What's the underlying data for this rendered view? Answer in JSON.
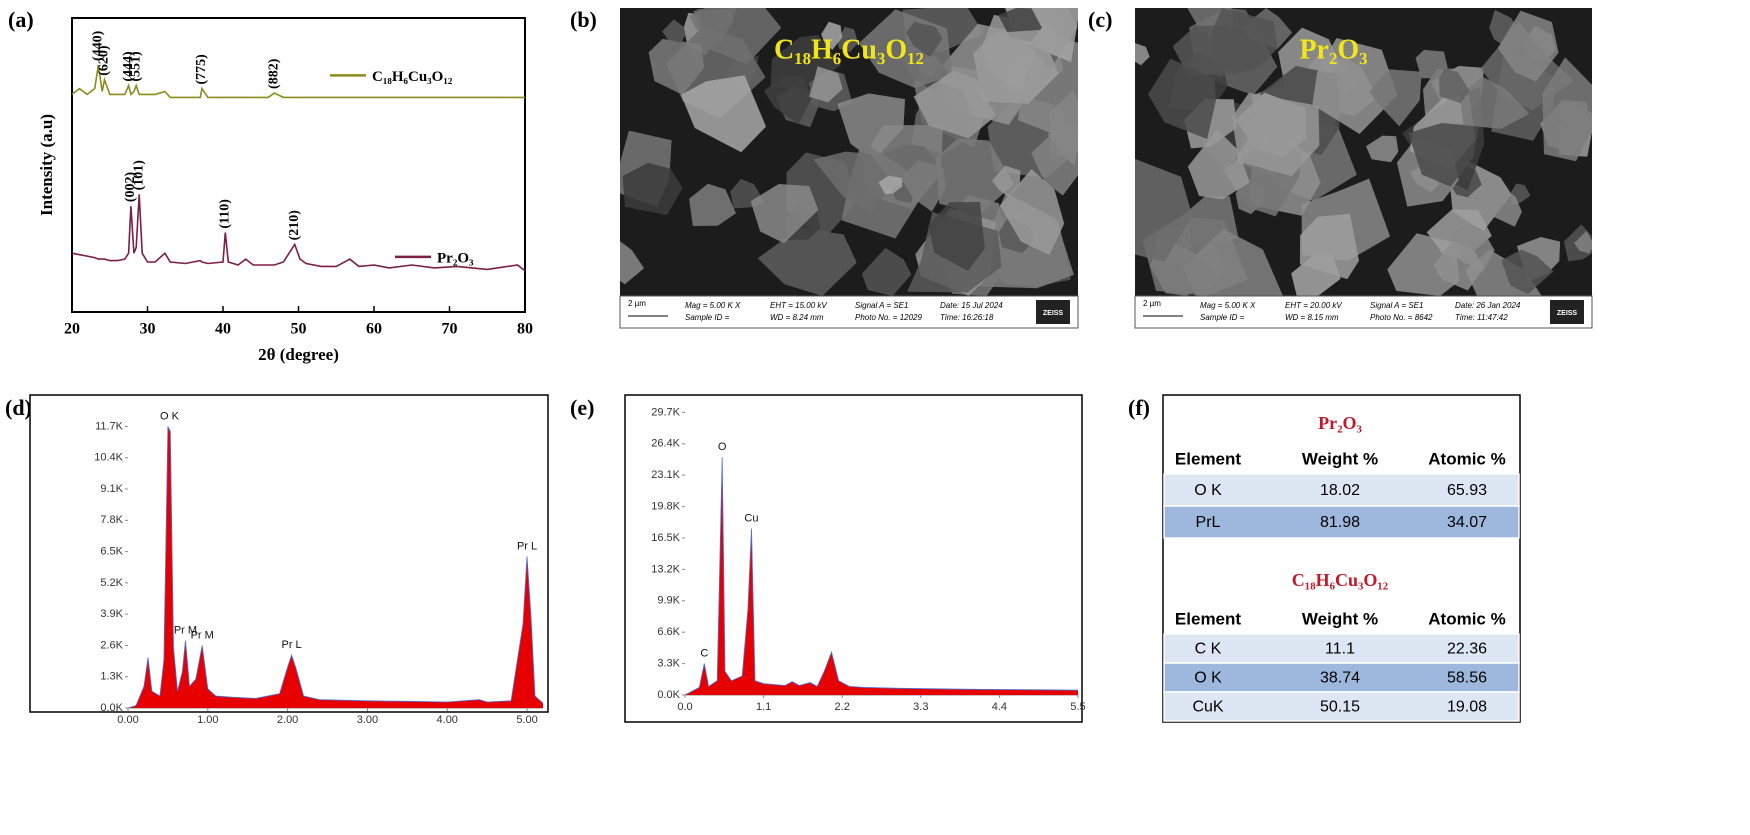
{
  "chart_data": [
    {
      "type": "line",
      "label": "(a)",
      "xlabel": "2θ (degree)",
      "ylabel": "Intensity (a.u)",
      "xlim": [
        20,
        80
      ],
      "ylim": [
        0,
        100
      ],
      "xticks": [
        20,
        30,
        40,
        50,
        60,
        70,
        80
      ],
      "x": [
        20,
        21,
        22,
        23,
        23.5,
        24,
        24.3,
        25,
        26,
        27,
        27.5,
        27.8,
        28.2,
        28.5,
        28.9,
        29.3,
        30,
        31,
        32.3,
        33,
        35,
        37,
        37.2,
        38,
        40,
        40.3,
        40.7,
        42,
        43,
        44,
        46,
        46.8,
        48,
        49.5,
        50.2,
        51,
        53,
        55,
        56.8,
        58,
        60,
        62,
        65,
        68,
        71,
        75,
        79,
        80
      ],
      "series": [
        {
          "name": "C₁₈H₆Cu₃O₁₂",
          "color": "#8b8b1e",
          "values": [
            74,
            76,
            74,
            76,
            84,
            75,
            79,
            74,
            74,
            74,
            77,
            74,
            75,
            77,
            74,
            74,
            74,
            74,
            75,
            73,
            73,
            73,
            76,
            73,
            73,
            73,
            73,
            73,
            73,
            73,
            73,
            74.5,
            73,
            73,
            73,
            73,
            73,
            73,
            73,
            73,
            73,
            73,
            73,
            73,
            73,
            73,
            73,
            73
          ],
          "annotations": [
            {
              "text": "(440)",
              "x": 23.5
            },
            {
              "text": "(620)",
              "x": 24.3
            },
            {
              "text": "(444)",
              "x": 27.5
            },
            {
              "text": "(551)",
              "x": 28.5
            },
            {
              "text": "(775)",
              "x": 37.2
            },
            {
              "text": "(882)",
              "x": 46.8
            }
          ]
        },
        {
          "name": "Pr₂O₃",
          "color": "#7b1f45",
          "values": [
            20,
            19.5,
            19,
            18.5,
            18,
            18,
            18,
            17.5,
            17.5,
            18,
            20,
            36,
            20,
            22,
            40,
            20,
            17,
            17,
            20,
            17,
            16.5,
            17.5,
            17,
            16.5,
            17,
            27,
            17,
            16,
            18,
            16,
            16,
            16,
            17,
            23,
            18,
            16.5,
            15.5,
            15.5,
            18,
            15.5,
            16,
            15,
            16,
            15,
            15.5,
            14.5,
            16,
            14
          ],
          "annotations": [
            {
              "text": "(002)",
              "x": 27.8
            },
            {
              "text": "(101)",
              "x": 28.9
            },
            {
              "text": "(110)",
              "x": 40.3
            },
            {
              "text": "(210)",
              "x": 49.5
            }
          ]
        }
      ]
    },
    {
      "type": "area",
      "label": "(d)",
      "color": "#e60000",
      "line_color": "#4a6fd6",
      "xlim": [
        0,
        5.2
      ],
      "ylim": [
        0,
        12800
      ],
      "xticks": [
        {
          "value": 0,
          "label": "0.00"
        },
        {
          "value": 1,
          "label": "1.00"
        },
        {
          "value": 2,
          "label": "2.00"
        },
        {
          "value": 3,
          "label": "3.00"
        },
        {
          "value": 4,
          "label": "4.00"
        },
        {
          "value": 5,
          "label": "5.00"
        }
      ],
      "yticks": [
        {
          "value": 0,
          "label": "0.0K"
        },
        {
          "value": 1300,
          "label": "1.3K"
        },
        {
          "value": 2600,
          "label": "2.6K"
        },
        {
          "value": 3900,
          "label": "3.9K"
        },
        {
          "value": 5200,
          "label": "5.2K"
        },
        {
          "value": 6500,
          "label": "6.5K"
        },
        {
          "value": 7800,
          "label": "7.8K"
        },
        {
          "value": 9100,
          "label": "9.1K"
        },
        {
          "value": 10400,
          "label": "10.4K"
        },
        {
          "value": 11700,
          "label": "11.7K"
        }
      ],
      "x": [
        0.0,
        0.1,
        0.2,
        0.25,
        0.3,
        0.4,
        0.45,
        0.5,
        0.53,
        0.57,
        0.62,
        0.68,
        0.72,
        0.77,
        0.85,
        0.93,
        1.0,
        1.1,
        1.3,
        1.6,
        1.9,
        2.0,
        2.05,
        2.1,
        2.2,
        2.4,
        3.0,
        3.5,
        4.0,
        4.4,
        4.5,
        4.8,
        4.95,
        5.0,
        5.05,
        5.1,
        5.2
      ],
      "values": [
        0,
        100,
        900,
        2100,
        700,
        500,
        2000,
        11700,
        11500,
        2500,
        700,
        1500,
        2800,
        900,
        1200,
        2600,
        800,
        500,
        450,
        400,
        600,
        1700,
        2200,
        1700,
        500,
        350,
        300,
        280,
        250,
        350,
        250,
        300,
        3500,
        6300,
        3800,
        500,
        200
      ],
      "annotations": [
        {
          "text": "O K",
          "x": 0.52
        },
        {
          "text": "Pr M",
          "x": 0.72
        },
        {
          "text": "Pr M",
          "x": 0.93
        },
        {
          "text": "Pr L",
          "x": 2.05
        },
        {
          "text": "Pr L",
          "x": 5.0
        }
      ]
    },
    {
      "type": "area",
      "label": "(e)",
      "color": "#e60000",
      "line_color": "#4a6fd6",
      "xlim": [
        0,
        5.5
      ],
      "ylim": [
        0,
        31000
      ],
      "xticks": [
        {
          "value": 0,
          "label": "0.0"
        },
        1.1,
        2.2,
        3.3,
        4.4,
        5.5
      ],
      "yticks": [
        {
          "value": 0,
          "label": "0.0K"
        },
        {
          "value": 3300,
          "label": "3.3K"
        },
        {
          "value": 6600,
          "label": "6.6K"
        },
        {
          "value": 9900,
          "label": "9.9K"
        },
        {
          "value": 13200,
          "label": "13.2K"
        },
        {
          "value": 16500,
          "label": "16.5K"
        },
        {
          "value": 19800,
          "label": "19.8K"
        },
        {
          "value": 23100,
          "label": "23.1K"
        },
        {
          "value": 26400,
          "label": "26.4K"
        },
        {
          "value": 29700,
          "label": "29.7K"
        }
      ],
      "x": [
        0.0,
        0.2,
        0.27,
        0.33,
        0.45,
        0.52,
        0.56,
        0.65,
        0.8,
        0.88,
        0.93,
        0.98,
        1.1,
        1.4,
        1.5,
        1.6,
        1.75,
        1.85,
        1.95,
        2.05,
        2.15,
        2.3,
        2.5,
        3.0,
        4.0,
        5.0,
        5.5
      ],
      "values": [
        0,
        800,
        3300,
        900,
        1500,
        25000,
        2500,
        1500,
        2000,
        9000,
        17500,
        1500,
        1200,
        1000,
        1400,
        1000,
        1300,
        900,
        2500,
        4500,
        1500,
        900,
        800,
        700,
        600,
        550,
        500
      ],
      "annotations": [
        {
          "text": "C",
          "x": 0.27
        },
        {
          "text": "O",
          "x": 0.52
        },
        {
          "text": "Cu",
          "x": 0.93
        }
      ]
    }
  ],
  "images": [
    {
      "label": "(b)",
      "caption": "C₁₈H₆Cu₃O₁₂",
      "scale": "2 µm",
      "brand": "ZEISS",
      "info": [
        "Mag =  5.00 K X",
        "Sample ID =",
        "EHT = 15.00 kV",
        "WD = 8.24 mm",
        "Signal A = SE1",
        "Photo No. = 12029",
        "Date: 15 Jul 2024",
        "Time: 16:26:18"
      ]
    },
    {
      "label": "(c)",
      "caption": "Pr₂O₃",
      "scale": "2 µm",
      "brand": "ZEISS",
      "info": [
        "Mag =  5.00 K X",
        "Sample ID =",
        "EHT = 20.00 kV",
        "WD = 8.15 mm",
        "Signal A = SE1",
        "Photo No. = 8642",
        "Date: 26 Jan 2024",
        "Time: 11:47:42"
      ]
    }
  ],
  "table": {
    "label": "(f)",
    "sections": [
      {
        "title": "Pr₂O₃",
        "header": [
          "Element",
          "Weight %",
          "Atomic %"
        ],
        "rows": [
          [
            "O K",
            18.02,
            65.93
          ],
          [
            "PrL",
            81.98,
            34.07
          ]
        ]
      },
      {
        "title": "C₁₈H₆Cu₃O₁₂",
        "header": [
          "Element",
          "Weight %",
          "Atomic %"
        ],
        "rows": [
          [
            "C K",
            11.1,
            22.36
          ],
          [
            "O K",
            38.74,
            58.56
          ],
          [
            "CuK",
            50.15,
            19.08
          ]
        ]
      }
    ]
  }
}
